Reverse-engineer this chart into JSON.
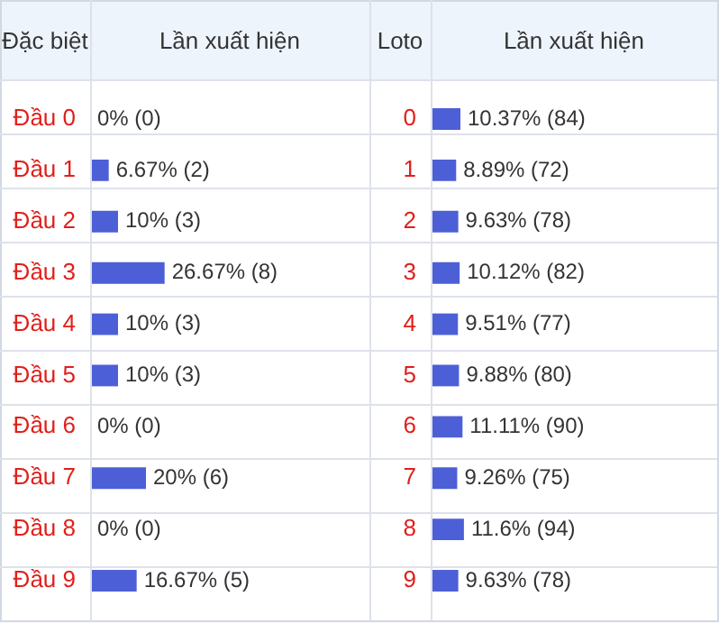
{
  "chart_data": [
    {
      "type": "bar",
      "orientation": "horizontal",
      "ylabel": "Đặc biệt",
      "xlabel": "Lần xuất hiện",
      "categories": [
        "Đầu 0",
        "Đầu 1",
        "Đầu 2",
        "Đầu 3",
        "Đầu 4",
        "Đầu 5",
        "Đầu 6",
        "Đầu 7",
        "Đầu 8",
        "Đầu 9"
      ],
      "values": [
        0,
        6.67,
        10,
        26.67,
        10,
        10,
        0,
        20,
        0,
        16.67
      ],
      "value_labels": [
        "0% (0)",
        "6.67% (2)",
        "10% (3)",
        "26.67% (8)",
        "10% (3)",
        "10% (3)",
        "0% (0)",
        "20% (6)",
        "0% (0)",
        "16.67% (5)"
      ],
      "color": "#4d5fd6",
      "xlim": [
        0,
        100
      ],
      "tick_labels": "y"
    },
    {
      "type": "bar",
      "orientation": "horizontal",
      "ylabel": "Loto",
      "xlabel": "Lần xuất hiện",
      "categories": [
        "0",
        "1",
        "2",
        "3",
        "4",
        "5",
        "6",
        "7",
        "8",
        "9"
      ],
      "values": [
        10.37,
        8.89,
        9.63,
        10.12,
        9.51,
        9.88,
        11.11,
        9.26,
        11.6,
        9.63
      ],
      "value_labels": [
        "10.37% (84)",
        "8.89% (72)",
        "9.63% (78)",
        "10.12% (82)",
        "9.51% (77)",
        "9.88% (80)",
        "11.11% (90)",
        "9.26% (75)",
        "11.6% (94)",
        "9.63% (78)"
      ],
      "color": "#4d5fd6",
      "xlim": [
        0,
        100
      ],
      "tick_labels": "y"
    }
  ]
}
